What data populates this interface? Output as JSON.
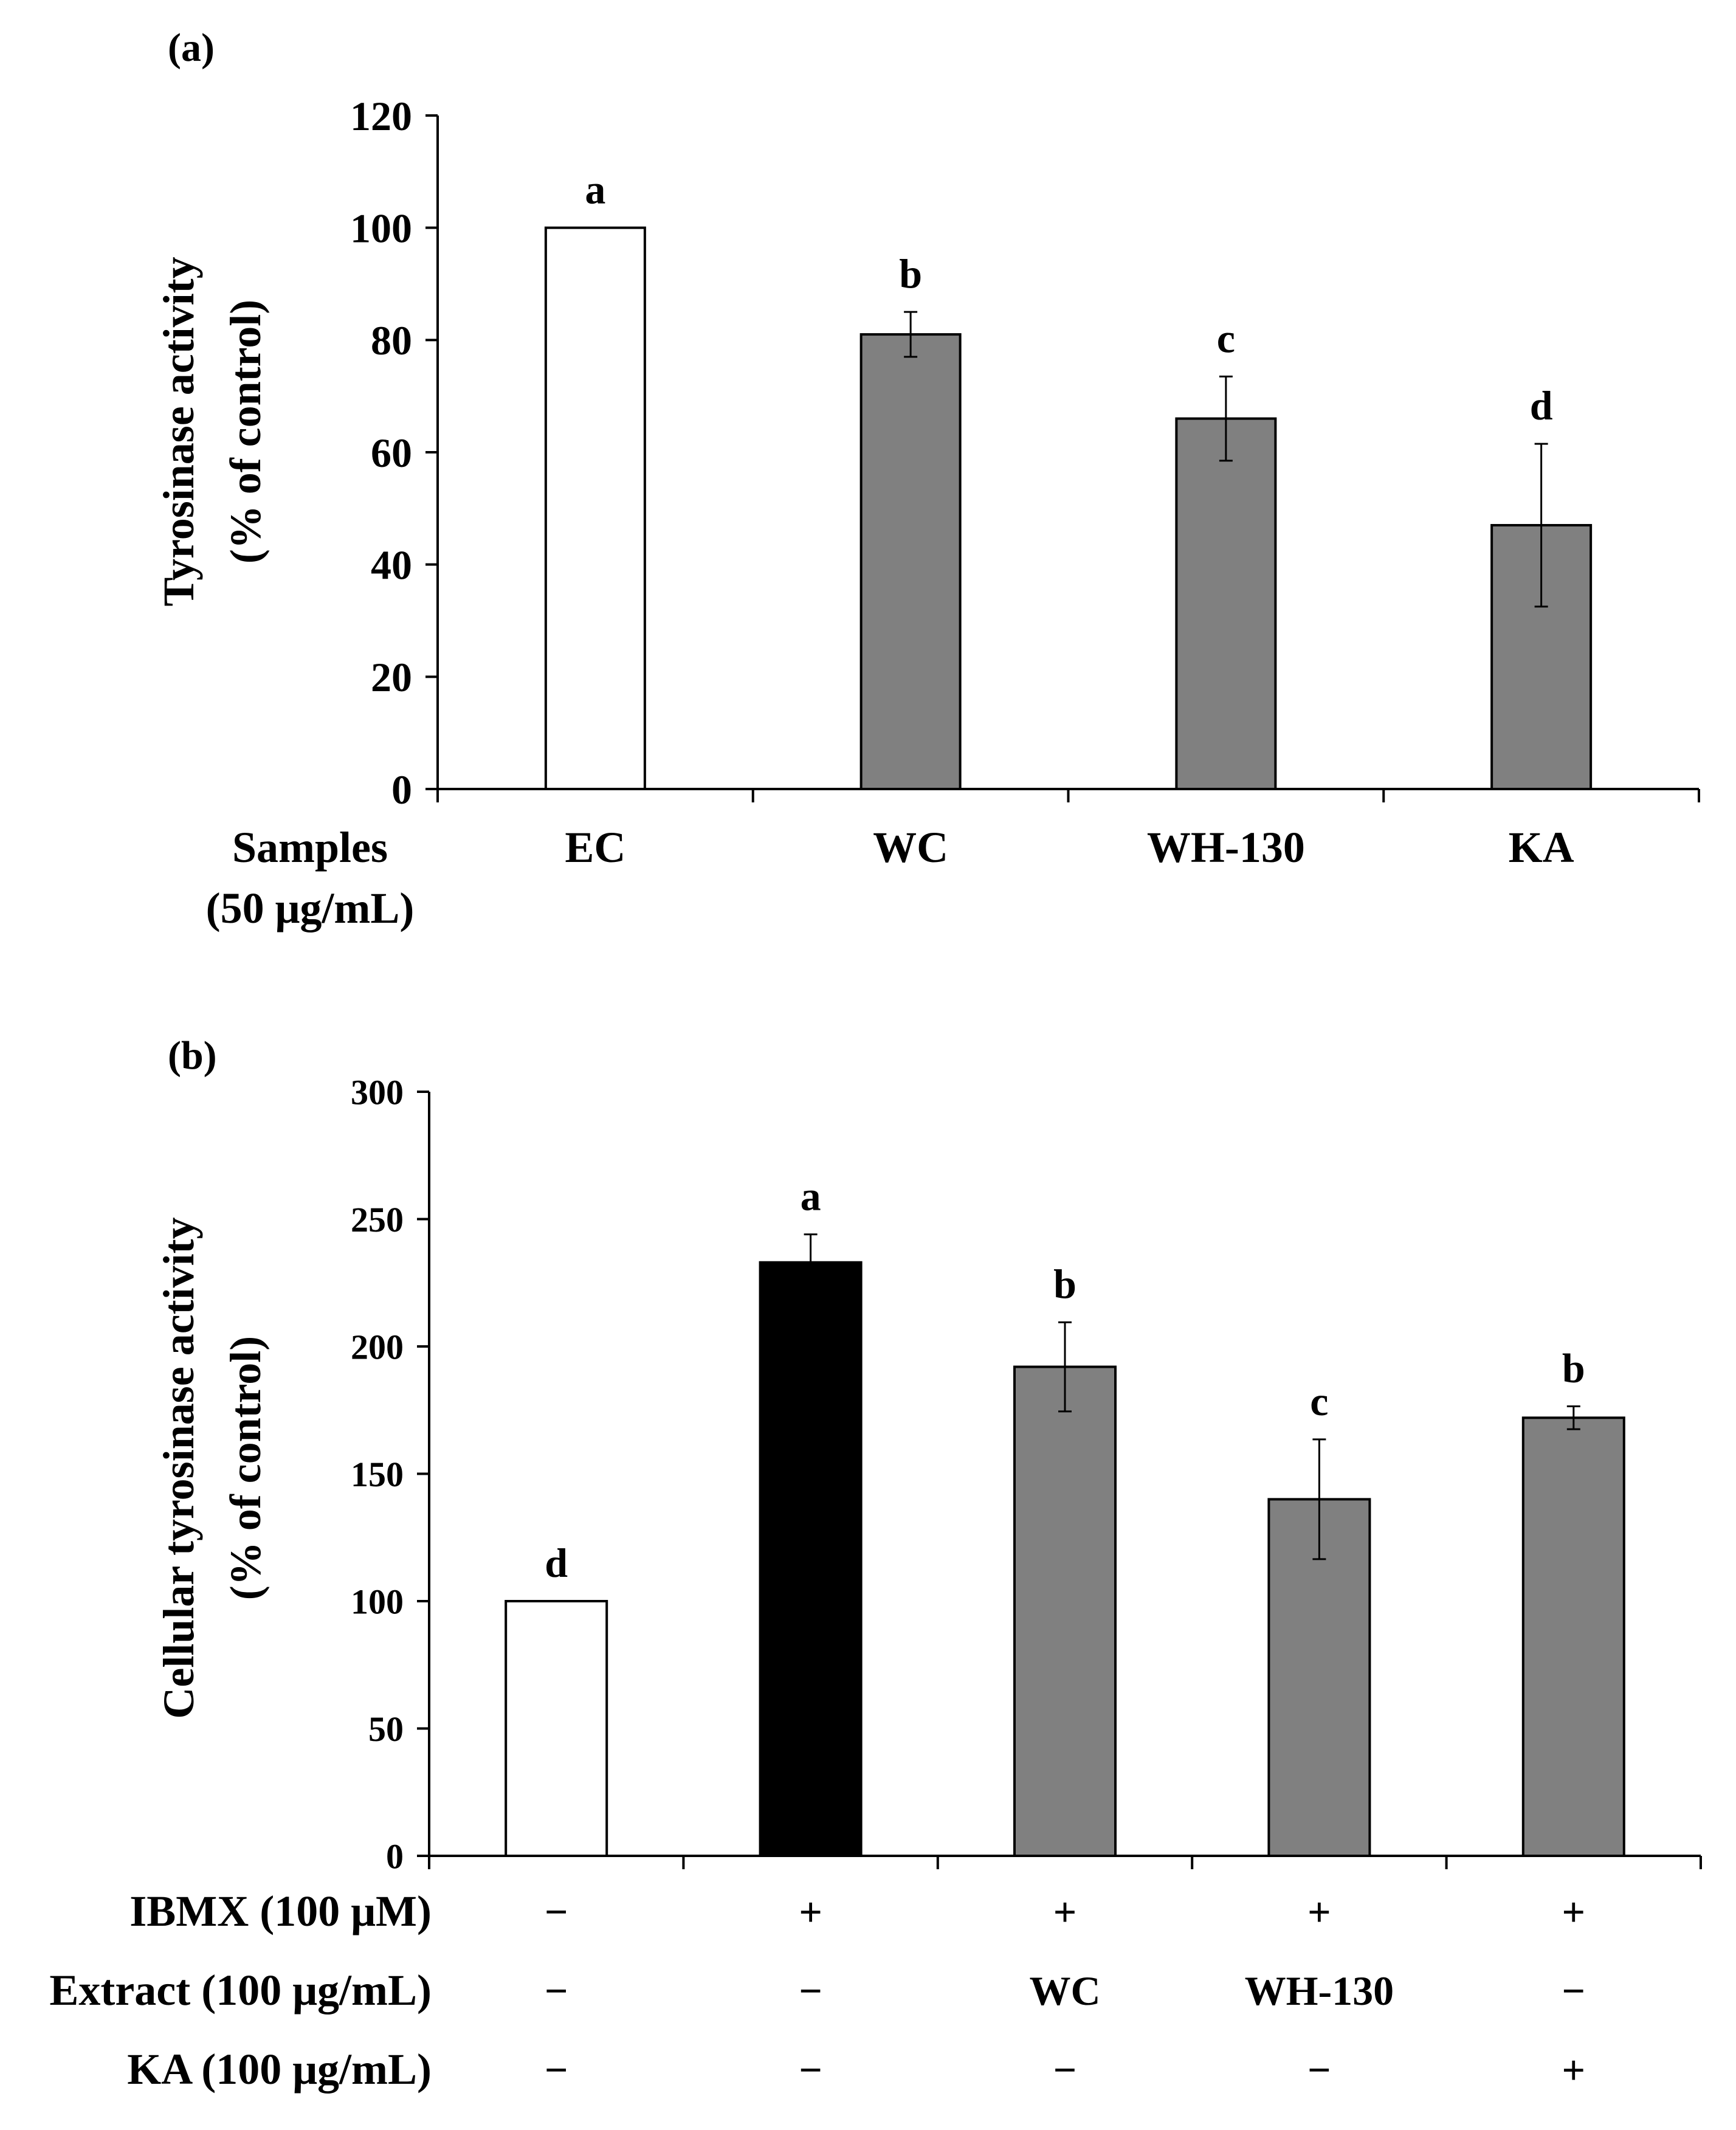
{
  "chart_data": [
    {
      "panel_label": "(a)",
      "type": "bar",
      "ylabel_lines": [
        "Tyrosinase activity",
        "(% of control)"
      ],
      "ylim": [
        0,
        120
      ],
      "yticks": [
        0,
        20,
        40,
        60,
        80,
        100,
        120
      ],
      "x_title_lines": [
        "Samples",
        "(50 μg/mL)"
      ],
      "categories": [
        "EC",
        "WC",
        "WH-130",
        "KA"
      ],
      "values": [
        100,
        81,
        66,
        47
      ],
      "errors": [
        0,
        4,
        7.5,
        14.5
      ],
      "significance": [
        "a",
        "b",
        "c",
        "d"
      ],
      "bar_colors": [
        "#ffffff",
        "#808080",
        "#808080",
        "#808080"
      ],
      "grid": false
    },
    {
      "panel_label": "(b)",
      "type": "bar",
      "ylabel_lines": [
        "Cellular tyrosinase activity",
        "(% of control)"
      ],
      "ylim": [
        0,
        300
      ],
      "yticks": [
        0,
        50,
        100,
        150,
        200,
        250,
        300
      ],
      "values": [
        100,
        233,
        192,
        140,
        172
      ],
      "errors": [
        0,
        11,
        17.5,
        23.5,
        4.5
      ],
      "significance": [
        "d",
        "a",
        "b",
        "c",
        "b"
      ],
      "bar_colors": [
        "#ffffff",
        "#000000",
        "#808080",
        "#808080",
        "#808080"
      ],
      "treatment_rows": [
        {
          "label": "IBMX (100 μM)",
          "values": [
            "−",
            "+",
            "+",
            "+",
            "+"
          ]
        },
        {
          "label": "Extract (100 μg/mL)",
          "values": [
            "−",
            "−",
            "WC",
            "WH-130",
            "−"
          ]
        },
        {
          "label": "KA (100 μg/mL)",
          "values": [
            "−",
            "−",
            "−",
            "−",
            "+"
          ]
        }
      ],
      "grid": false
    }
  ]
}
